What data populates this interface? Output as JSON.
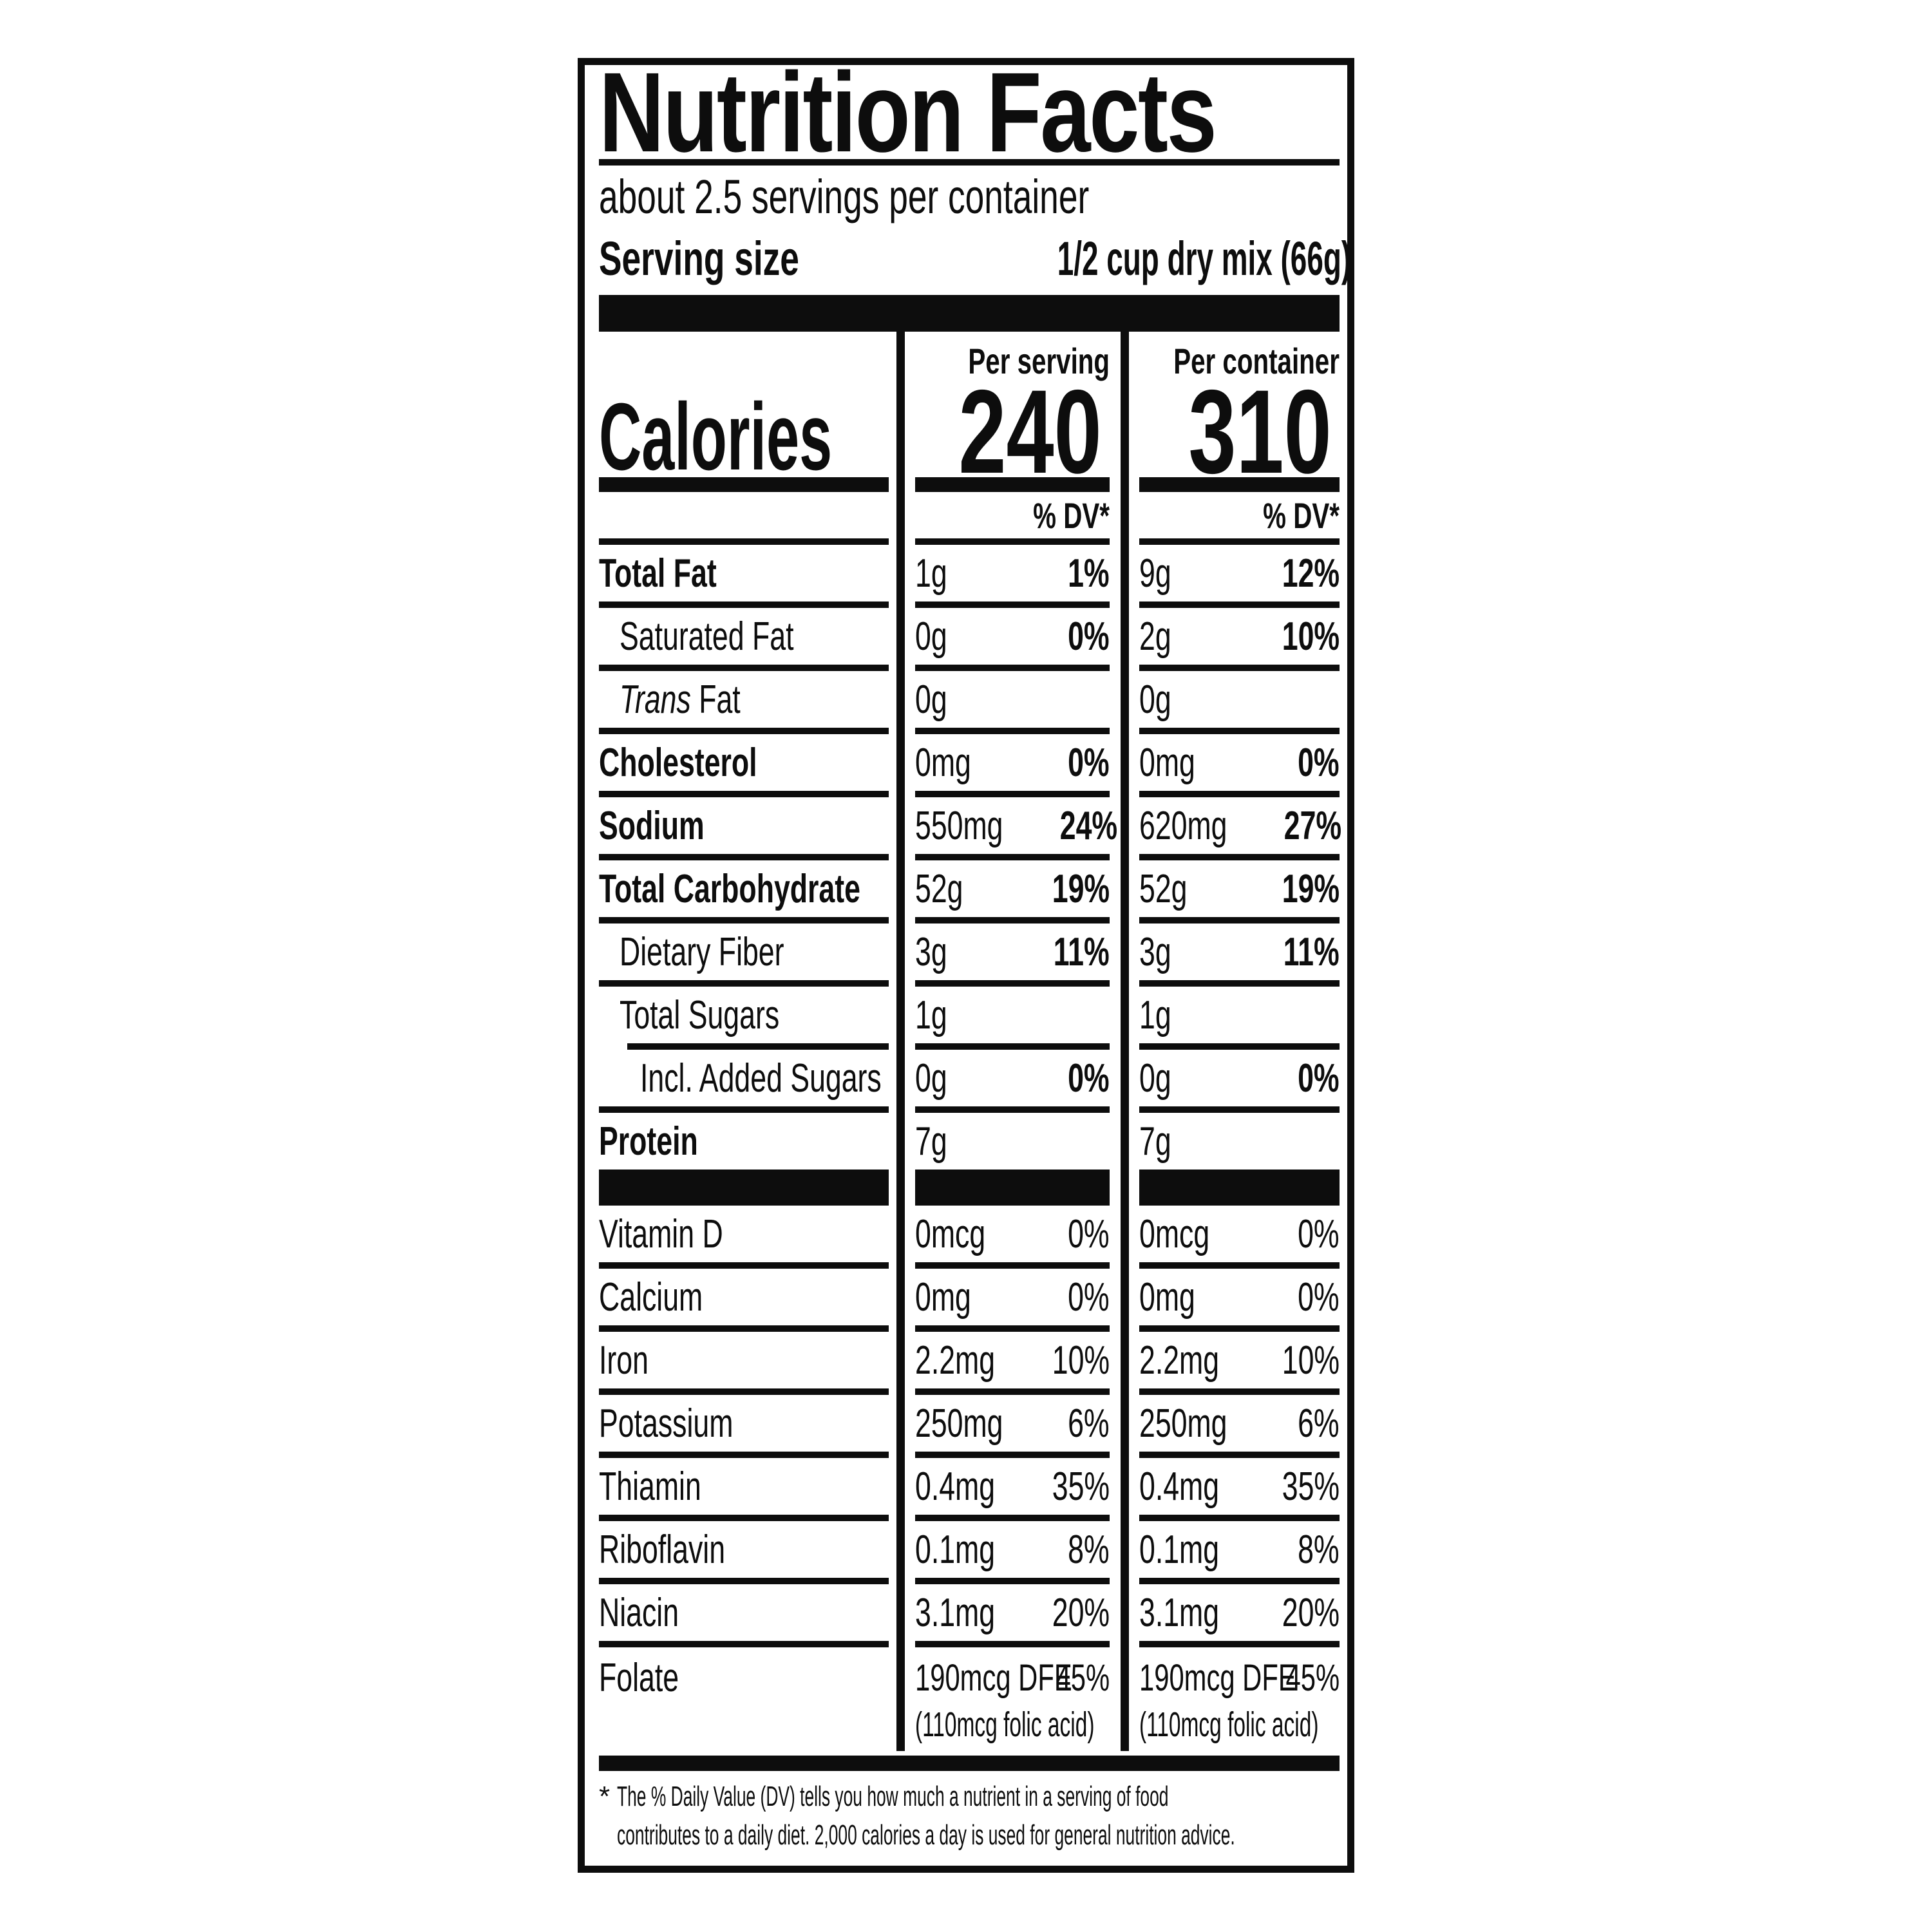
{
  "colors": {
    "ink": "#0d0d0d",
    "paper": "#ffffff"
  },
  "label": {
    "title": "Nutrition Facts",
    "servings_per_container": "about 2.5 servings per container",
    "serving_size_label": "Serving size",
    "serving_size_value": "1/2 cup dry mix (66g)",
    "calories_word": "Calories",
    "col_serving_header": "Per serving",
    "col_container_header": "Per container",
    "calories_per_serving": "240",
    "calories_per_container": "310",
    "dv_header": "% DV*"
  },
  "nutrients": [
    {
      "name": "Total Fat",
      "serving_amount": "1g",
      "serving_dv": "1%",
      "container_amount": "9g",
      "container_dv": "12%"
    },
    {
      "name": "Saturated Fat",
      "serving_amount": "0g",
      "serving_dv": "0%",
      "container_amount": "2g",
      "container_dv": "10%"
    },
    {
      "name_italic": "Trans",
      "name_rest": " Fat",
      "serving_amount": "0g",
      "serving_dv": "",
      "container_amount": "0g",
      "container_dv": ""
    },
    {
      "name": "Cholesterol",
      "serving_amount": "0mg",
      "serving_dv": "0%",
      "container_amount": "0mg",
      "container_dv": "0%"
    },
    {
      "name": "Sodium",
      "serving_amount": "550mg",
      "serving_dv": "24%",
      "container_amount": "620mg",
      "container_dv": "27%"
    },
    {
      "name": "Total Carbohydrate",
      "serving_amount": "52g",
      "serving_dv": "19%",
      "container_amount": "52g",
      "container_dv": "19%"
    },
    {
      "name": "Dietary Fiber",
      "serving_amount": "3g",
      "serving_dv": "11%",
      "container_amount": "3g",
      "container_dv": "11%"
    },
    {
      "name": "Total Sugars",
      "serving_amount": "1g",
      "serving_dv": "",
      "container_amount": "1g",
      "container_dv": ""
    },
    {
      "name": "Incl. Added Sugars",
      "serving_amount": "0g",
      "serving_dv": "0%",
      "container_amount": "0g",
      "container_dv": "0%"
    },
    {
      "name": "Protein",
      "serving_amount": "7g",
      "serving_dv": "",
      "container_amount": "7g",
      "container_dv": ""
    }
  ],
  "vitamins": [
    {
      "name": "Vitamin D",
      "serving_amount": "0mcg",
      "serving_dv": "0%",
      "container_amount": "0mcg",
      "container_dv": "0%"
    },
    {
      "name": "Calcium",
      "serving_amount": "0mg",
      "serving_dv": "0%",
      "container_amount": "0mg",
      "container_dv": "0%"
    },
    {
      "name": "Iron",
      "serving_amount": "2.2mg",
      "serving_dv": "10%",
      "container_amount": "2.2mg",
      "container_dv": "10%"
    },
    {
      "name": "Potassium",
      "serving_amount": "250mg",
      "serving_dv": "6%",
      "container_amount": "250mg",
      "container_dv": "6%"
    },
    {
      "name": "Thiamin",
      "serving_amount": "0.4mg",
      "serving_dv": "35%",
      "container_amount": "0.4mg",
      "container_dv": "35%"
    },
    {
      "name": "Riboflavin",
      "serving_amount": "0.1mg",
      "serving_dv": "8%",
      "container_amount": "0.1mg",
      "container_dv": "8%"
    },
    {
      "name": "Niacin",
      "serving_amount": "3.1mg",
      "serving_dv": "20%",
      "container_amount": "3.1mg",
      "container_dv": "20%"
    },
    {
      "name": "Folate",
      "serving_amount": "190mcg DFE",
      "serving_dv": "45%",
      "serving_note": "(110mcg folic acid)",
      "container_amount": "190mcg DFE",
      "container_dv": "45%",
      "container_note": "(110mcg folic acid)"
    }
  ],
  "footnote": {
    "star": "*",
    "line1": "The % Daily Value (DV) tells you how much a nutrient in a serving of food",
    "line2": "contributes to a daily diet. 2,000 calories a day is used for general nutrition advice."
  }
}
